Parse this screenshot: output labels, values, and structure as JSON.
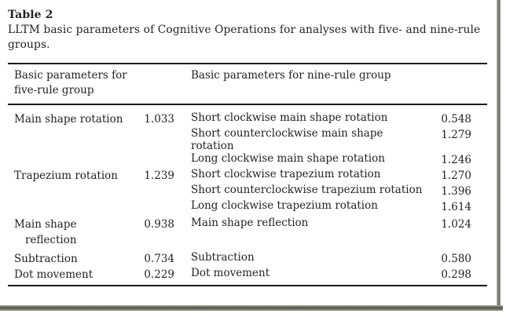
{
  "page": {
    "title": "Table 2",
    "caption_lines": [
      "LLTM basic parameters of Cognitive Operations for analyses with five- and nine-rule",
      "groups."
    ]
  },
  "table": {
    "header": {
      "left_lines": [
        "Basic parameters for",
        "five-rule group"
      ],
      "right": "Basic parameters for nine-rule group"
    },
    "groups": [
      {
        "left_lines": [
          "Main shape rotation"
        ],
        "left_value": "1.033",
        "rows": [
          {
            "lines": [
              "Short clockwise main shape rotation"
            ],
            "value": "0.548"
          },
          {
            "lines": [
              "Short counterclockwise main shape",
              "rotation"
            ],
            "value": "1.279"
          },
          {
            "lines": [
              "Long clockwise main shape rotation"
            ],
            "value": "1.246"
          }
        ]
      },
      {
        "left_lines": [
          "Trapezium rotation"
        ],
        "left_value": "1.239",
        "rows": [
          {
            "lines": [
              "Short clockwise trapezium rotation"
            ],
            "value": "1.270"
          },
          {
            "lines": [
              "Short counterclockwise trapezium rotation"
            ],
            "value": "1.396"
          },
          {
            "lines": [
              "Long clockwise trapezium rotation"
            ],
            "value": "1.614"
          }
        ]
      },
      {
        "left_lines": [
          "Main shape",
          "reflection"
        ],
        "left_value": "0.938",
        "rows": [
          {
            "lines": [
              "Main shape reflection"
            ],
            "value": "1.024"
          }
        ]
      },
      {
        "left_lines": [
          "Subtraction"
        ],
        "left_value": "0.734",
        "rows": [
          {
            "lines": [
              "Subtraction"
            ],
            "value": "0.580"
          }
        ]
      },
      {
        "left_lines": [
          "Dot movement"
        ],
        "left_value": "0.229",
        "rows": [
          {
            "lines": [
              "Dot movement"
            ],
            "value": "0.298"
          }
        ]
      }
    ]
  },
  "colors": {
    "text": "#22222a",
    "rule": "#1a1a1a",
    "frame_shadow": "#4f5246",
    "background": "#ffffff"
  }
}
